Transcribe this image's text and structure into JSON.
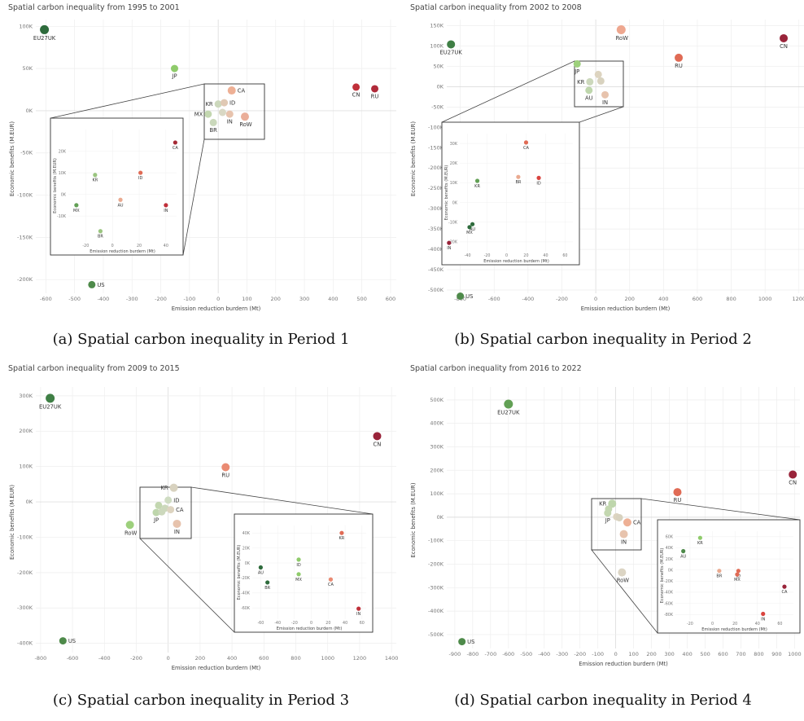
{
  "chart_data": [
    {
      "type": "scatter",
      "title": "Spatial carbon inequality from 1995 to 2001",
      "caption": "(a) Spatial carbon inequality in Period 1",
      "xlabel": "Emission reduction burdern (Mt)",
      "ylabel": "Economic benefits (M.EUR)",
      "x_ticks": [
        -600,
        -500,
        -400,
        -300,
        -200,
        -100,
        0,
        100,
        200,
        300,
        400,
        500,
        600
      ],
      "y_ticks": [
        -200000,
        -150000,
        -100000,
        -50000,
        0,
        50000,
        100000
      ],
      "y_tick_labels": [
        "-200K",
        "-150K",
        "-100K",
        "-50K",
        "0K",
        "50K",
        "100K"
      ],
      "xlim": [
        -635,
        620
      ],
      "ylim": [
        -222000,
        108000
      ],
      "points": [
        {
          "label": "EU27UK",
          "x": -605,
          "y": 96000,
          "color": "#2e6b3c",
          "size": 5.5
        },
        {
          "label": "JP",
          "x": -152,
          "y": 50000,
          "color": "#8fcb6b",
          "size": 4.5
        },
        {
          "label": "US",
          "x": -440,
          "y": -206000,
          "color": "#4e8a4a",
          "size": 4.5
        },
        {
          "label": "CN",
          "x": 480,
          "y": 28000,
          "color": "#c0303a",
          "size": 4.5
        },
        {
          "label": "RU",
          "x": 545,
          "y": 26000,
          "color": "#b02a3a",
          "size": 4.5
        },
        {
          "label": "CA",
          "x": 47,
          "y": 24000,
          "color": "#eeb095",
          "size": 5
        },
        {
          "label": "KR",
          "x": 0,
          "y": 8000,
          "color": "#ccd8bc",
          "size": 4.5
        },
        {
          "label": "ID",
          "x": 21,
          "y": 9500,
          "color": "#e0c9b4",
          "size": 4.5
        },
        {
          "label": "MX",
          "x": -35,
          "y": -4000,
          "color": "#c3d7b0",
          "size": 4.5
        },
        {
          "label": "IN",
          "x": 40,
          "y": -4000,
          "color": "#e7c3ad",
          "size": 4.5
        },
        {
          "label": "BR",
          "x": -17,
          "y": -14000,
          "color": "#cad8bb",
          "size": 4.5
        },
        {
          "label": "RoW",
          "x": 93,
          "y": -7000,
          "color": "#eaae99",
          "size": 5
        },
        {
          "label": "",
          "x": 15,
          "y": -2000,
          "color": "#d9d8c4",
          "size": 4.5
        }
      ],
      "inset": {
        "x_ticks": [
          -20,
          0,
          20,
          40
        ],
        "y_ticks": [
          -10000,
          0,
          10000,
          20000
        ],
        "y_tick_labels": [
          "-10K",
          "0K",
          "10K",
          "20K"
        ],
        "xlim": [
          -33,
          48
        ],
        "ylim": [
          -22000,
          30000
        ],
        "points": [
          {
            "label": "CA",
            "x": 47,
            "y": 24000,
            "color": "#a52a35"
          },
          {
            "label": "KR",
            "x": -13,
            "y": 9000,
            "color": "#9ac57f"
          },
          {
            "label": "ID",
            "x": 21,
            "y": 10000,
            "color": "#e06b55"
          },
          {
            "label": "AU",
            "x": 6,
            "y": -2500,
            "color": "#eaaa90"
          },
          {
            "label": "MX",
            "x": -27,
            "y": -5000,
            "color": "#62a055"
          },
          {
            "label": "IN",
            "x": 40,
            "y": -5000,
            "color": "#c0303a"
          },
          {
            "label": "BR",
            "x": -9,
            "y": -17000,
            "color": "#9ac57f"
          }
        ]
      }
    },
    {
      "type": "scatter",
      "title": "Spatial carbon inequality from 2002 to 2008",
      "caption": "(b) Spatial carbon inequality in Period 2",
      "xlabel": "Emission reduction burdern (Mt)",
      "ylabel": "Economic benefits (M.EUR)",
      "x_ticks": [
        -800,
        -600,
        -400,
        -200,
        0,
        200,
        400,
        600,
        800,
        1000,
        1200
      ],
      "y_ticks": [
        -500000,
        -450000,
        -400000,
        -350000,
        -300000,
        -250000,
        -200000,
        -150000,
        -100000,
        -50000,
        0,
        50000,
        100000,
        150000
      ],
      "y_tick_labels": [
        "-500K",
        "-450K",
        "-400K",
        "-350K",
        "-300K",
        "-250K",
        "-200K",
        "-150K",
        "-100K",
        "-50K",
        "0K",
        "50K",
        "100K",
        "150K"
      ],
      "xlim": [
        -880,
        1230
      ],
      "ylim": [
        -520000,
        165000
      ],
      "points": [
        {
          "label": "EU27UK",
          "x": -855,
          "y": 104000,
          "color": "#3f7f45",
          "size": 5
        },
        {
          "label": "RoW",
          "x": 150,
          "y": 140000,
          "color": "#eea78f",
          "size": 5.5
        },
        {
          "label": "RU",
          "x": 490,
          "y": 71000,
          "color": "#e06b55",
          "size": 5
        },
        {
          "label": "CN",
          "x": 1110,
          "y": 119000,
          "color": "#99243a",
          "size": 5
        },
        {
          "label": "JP",
          "x": -110,
          "y": 56000,
          "color": "#9dd07c",
          "size": 4.5
        },
        {
          "label": "KR",
          "x": -35,
          "y": 12000,
          "color": "#ccd8bc",
          "size": 4.5
        },
        {
          "label": "",
          "x": 15,
          "y": 30000,
          "color": "#ddd4c0",
          "size": 4.5
        },
        {
          "label": "",
          "x": 30,
          "y": 14000,
          "color": "#d8d2bf",
          "size": 4.5
        },
        {
          "label": "AU",
          "x": -40,
          "y": -9000,
          "color": "#bed6ac",
          "size": 4.5
        },
        {
          "label": "IN",
          "x": 55,
          "y": -20000,
          "color": "#e7c3ad",
          "size": 4.5
        },
        {
          "label": "US",
          "x": -800,
          "y": -515000,
          "color": "#4e8a4a",
          "size": 4.5
        }
      ],
      "inset": {
        "x_ticks": [
          -40,
          -20,
          0,
          20,
          40,
          60
        ],
        "y_ticks": [
          -20000,
          -10000,
          0,
          10000,
          20000,
          30000
        ],
        "y_tick_labels": [
          "-20K",
          "-10K",
          "0K",
          "10K",
          "20K",
          "30K"
        ],
        "xlim": [
          -48,
          68
        ],
        "ylim": [
          -25000,
          35000
        ],
        "points": [
          {
            "label": "CA",
            "x": 20,
            "y": 30500,
            "color": "#e06b55"
          },
          {
            "label": "BR",
            "x": 12,
            "y": 13000,
            "color": "#eaaa90"
          },
          {
            "label": "KR",
            "x": -30,
            "y": 11000,
            "color": "#62a055"
          },
          {
            "label": "ID",
            "x": 33,
            "y": 12500,
            "color": "#d9443f"
          },
          {
            "label": "AU",
            "x": -35,
            "y": -11000,
            "color": "#2e6b3c"
          },
          {
            "label": "MX",
            "x": -38,
            "y": -12500,
            "color": "#2e6b3c"
          },
          {
            "label": "IN",
            "x": -59,
            "y": -20500,
            "color": "#99243a"
          }
        ]
      }
    },
    {
      "type": "scatter",
      "title": "Spatial carbon inequality from 2009 to 2015",
      "caption": "(c) Spatial carbon inequality in Period 3",
      "xlabel": "Emission reduction burdern (Mt)",
      "ylabel": "Economic benefits (M.EUR)",
      "x_ticks": [
        -800,
        -600,
        -400,
        -200,
        0,
        200,
        400,
        600,
        800,
        1000,
        1200,
        1400
      ],
      "y_ticks": [
        -400000,
        -300000,
        -200000,
        -100000,
        0,
        100000,
        200000,
        300000
      ],
      "y_tick_labels": [
        "-400K",
        "-300K",
        "-200K",
        "-100K",
        "0K",
        "100K",
        "200K",
        "300K"
      ],
      "xlim": [
        -830,
        1430
      ],
      "ylim": [
        -440000,
        325000
      ],
      "points": [
        {
          "label": "EU27UK",
          "x": -740,
          "y": 293000,
          "color": "#3f7f45",
          "size": 5.5
        },
        {
          "label": "CN",
          "x": 1310,
          "y": 186000,
          "color": "#99243a",
          "size": 5
        },
        {
          "label": "RU",
          "x": 360,
          "y": 98000,
          "color": "#ea8b73",
          "size": 5
        },
        {
          "label": "RoW",
          "x": -240,
          "y": -65000,
          "color": "#9dd07c",
          "size": 5
        },
        {
          "label": "US",
          "x": -660,
          "y": -393000,
          "color": "#4e8a4a",
          "size": 4.5
        },
        {
          "label": "KR",
          "x": 35,
          "y": 40000,
          "color": "#d8d2bf",
          "size": 5
        },
        {
          "label": "ID",
          "x": 0,
          "y": 5000,
          "color": "#cfdcc2",
          "size": 4.5
        },
        {
          "label": "AU",
          "x": -60,
          "y": -10000,
          "color": "#c3d7b0",
          "size": 4.5
        },
        {
          "label": "",
          "x": -20,
          "y": -18000,
          "color": "#ccd8bc",
          "size": 4.5
        },
        {
          "label": "CA",
          "x": 15,
          "y": -22000,
          "color": "#ddd4c0",
          "size": 4.5
        },
        {
          "label": "JP",
          "x": -75,
          "y": -30000,
          "color": "#bed6ac",
          "size": 4.5
        },
        {
          "label": "",
          "x": -40,
          "y": -28000,
          "color": "#ccd8bc",
          "size": 4.5
        },
        {
          "label": "IN",
          "x": 55,
          "y": -62000,
          "color": "#e7c3ad",
          "size": 5
        }
      ],
      "inset": {
        "x_ticks": [
          -60,
          -40,
          -20,
          0,
          20,
          40,
          60
        ],
        "y_ticks": [
          -60000,
          -40000,
          -20000,
          0,
          20000,
          40000
        ],
        "y_tick_labels": [
          "-60K",
          "-40K",
          "-20K",
          "0K",
          "20K",
          "40K"
        ],
        "xlim": [
          -70,
          65
        ],
        "ylim": [
          -75000,
          50000
        ],
        "points": [
          {
            "label": "KR",
            "x": 36,
            "y": 40000,
            "color": "#e06b55"
          },
          {
            "label": "ID",
            "x": -15,
            "y": 4500,
            "color": "#8fcb6b"
          },
          {
            "label": "AU",
            "x": -60,
            "y": -6000,
            "color": "#2e6b3c"
          },
          {
            "label": "MX",
            "x": -15,
            "y": -15000,
            "color": "#8fcb6b"
          },
          {
            "label": "CA",
            "x": 23,
            "y": -22000,
            "color": "#ea8b73"
          },
          {
            "label": "BR",
            "x": -52,
            "y": -26000,
            "color": "#2e6b3c"
          },
          {
            "label": "IN",
            "x": 56,
            "y": -61000,
            "color": "#c0303a"
          }
        ]
      }
    },
    {
      "type": "scatter",
      "title": "Spatial carbon inequality from 2016 to 2022",
      "caption": "(d) Spatial carbon inequality in Period 4",
      "xlabel": "Emission reduction burdern (Mt)",
      "ylabel": "Economic benefits (M.EUR)",
      "x_ticks": [
        -900,
        -800,
        -700,
        -600,
        -500,
        -400,
        -300,
        -200,
        -100,
        0,
        100,
        200,
        300,
        400,
        500,
        600,
        700,
        800,
        900,
        1000
      ],
      "y_ticks": [
        -500000,
        -400000,
        -300000,
        -200000,
        -100000,
        0,
        100000,
        200000,
        300000,
        400000,
        500000
      ],
      "y_tick_labels": [
        "-500K",
        "-400K",
        "-300K",
        "-200K",
        "-100K",
        "0K",
        "100K",
        "200K",
        "300K",
        "400K",
        "500K"
      ],
      "xlim": [
        -945,
        1030
      ],
      "ylim": [
        -580000,
        555000
      ],
      "points": [
        {
          "label": "EU27UK",
          "x": -600,
          "y": 482000,
          "color": "#62a055",
          "size": 5.5
        },
        {
          "label": "CN",
          "x": 990,
          "y": 182000,
          "color": "#99243a",
          "size": 5
        },
        {
          "label": "RU",
          "x": 345,
          "y": 107000,
          "color": "#e06b55",
          "size": 5
        },
        {
          "label": "KR",
          "x": -20,
          "y": 58000,
          "color": "#bed6ac",
          "size": 5
        },
        {
          "label": "",
          "x": -40,
          "y": 35000,
          "color": "#c3d7b0",
          "size": 4.5
        },
        {
          "label": "JP",
          "x": -45,
          "y": 18000,
          "color": "#c3d7b0",
          "size": 4.5
        },
        {
          "label": "",
          "x": 5,
          "y": 2000,
          "color": "#ddd4c0",
          "size": 4.5
        },
        {
          "label": "",
          "x": 20,
          "y": -2000,
          "color": "#d8d2bf",
          "size": 4.5
        },
        {
          "label": "CA",
          "x": 65,
          "y": -22000,
          "color": "#eeb095",
          "size": 5
        },
        {
          "label": "IN",
          "x": 45,
          "y": -72000,
          "color": "#e7c3ad",
          "size": 5
        },
        {
          "label": "RoW",
          "x": 35,
          "y": -235000,
          "color": "#dcd5c4",
          "size": 5
        },
        {
          "label": "US",
          "x": -860,
          "y": -530000,
          "color": "#4e8a4a",
          "size": 4.5
        }
      ],
      "inset": {
        "x_ticks": [
          -20,
          0,
          20,
          40,
          60
        ],
        "y_ticks": [
          -80000,
          -60000,
          -40000,
          -20000,
          0,
          20000,
          40000,
          60000
        ],
        "y_tick_labels": [
          "-80K",
          "-60K",
          "-40K",
          "-20K",
          "0K",
          "20K",
          "40K",
          "60K"
        ],
        "xlim": [
          -33,
          72
        ],
        "ylim": [
          -90000,
          70000
        ],
        "points": [
          {
            "label": "KR",
            "x": -11,
            "y": 58000,
            "color": "#8fcb6b"
          },
          {
            "label": "AU",
            "x": -26,
            "y": 34000,
            "color": "#4e8a4a"
          },
          {
            "label": "BR",
            "x": 6,
            "y": -1500,
            "color": "#eaaa90"
          },
          {
            "label": "ID",
            "x": 23,
            "y": -1500,
            "color": "#e06b55"
          },
          {
            "label": "MX",
            "x": 22,
            "y": -8000,
            "color": "#e06b55"
          },
          {
            "label": "CA",
            "x": 64,
            "y": -30000,
            "color": "#99243a"
          },
          {
            "label": "IN",
            "x": 45,
            "y": -79000,
            "color": "#d9443f"
          }
        ]
      }
    }
  ]
}
